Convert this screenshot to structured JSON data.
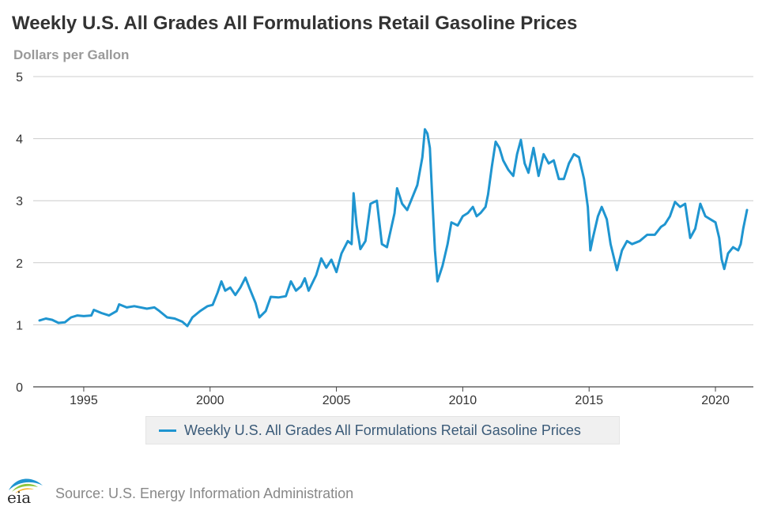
{
  "header": {
    "title": "Weekly U.S. All Grades All Formulations Retail Gasoline Prices",
    "subtitle": "Dollars per Gallon"
  },
  "legend": {
    "label": "Weekly U.S. All Grades All Formulations Retail Gasoline Prices",
    "color": "#1f95d0"
  },
  "footer": {
    "logo_text": "eia",
    "source": "Source: U.S. Energy Information Administration"
  },
  "chart_data": {
    "type": "line",
    "title": "Weekly U.S. All Grades All Formulations Retail Gasoline Prices",
    "ylabel": "Dollars per Gallon",
    "xlabel": "",
    "xlim": [
      1993.0,
      2021.5
    ],
    "ylim": [
      0,
      5
    ],
    "x_ticks": [
      1995,
      2000,
      2005,
      2010,
      2015,
      2020
    ],
    "y_ticks": [
      0,
      1,
      2,
      3,
      4,
      5
    ],
    "grid": "horizontal",
    "legend_position": "bottom-center",
    "series": [
      {
        "name": "Weekly U.S. All Grades All Formulations Retail Gasoline Prices",
        "color": "#1f95d0",
        "points": [
          [
            1993.25,
            1.07
          ],
          [
            1993.5,
            1.1
          ],
          [
            1993.75,
            1.08
          ],
          [
            1994.0,
            1.03
          ],
          [
            1994.25,
            1.04
          ],
          [
            1994.5,
            1.12
          ],
          [
            1994.75,
            1.15
          ],
          [
            1995.0,
            1.14
          ],
          [
            1995.3,
            1.15
          ],
          [
            1995.4,
            1.24
          ],
          [
            1995.7,
            1.19
          ],
          [
            1996.0,
            1.15
          ],
          [
            1996.3,
            1.22
          ],
          [
            1996.4,
            1.33
          ],
          [
            1996.7,
            1.28
          ],
          [
            1997.0,
            1.3
          ],
          [
            1997.5,
            1.26
          ],
          [
            1997.8,
            1.28
          ],
          [
            1998.0,
            1.22
          ],
          [
            1998.3,
            1.12
          ],
          [
            1998.6,
            1.1
          ],
          [
            1998.9,
            1.05
          ],
          [
            1999.1,
            0.98
          ],
          [
            1999.3,
            1.12
          ],
          [
            1999.6,
            1.22
          ],
          [
            1999.9,
            1.3
          ],
          [
            2000.1,
            1.32
          ],
          [
            2000.3,
            1.52
          ],
          [
            2000.45,
            1.7
          ],
          [
            2000.6,
            1.55
          ],
          [
            2000.8,
            1.6
          ],
          [
            2001.0,
            1.48
          ],
          [
            2001.2,
            1.6
          ],
          [
            2001.4,
            1.76
          ],
          [
            2001.55,
            1.6
          ],
          [
            2001.8,
            1.35
          ],
          [
            2001.95,
            1.12
          ],
          [
            2002.2,
            1.22
          ],
          [
            2002.4,
            1.45
          ],
          [
            2002.7,
            1.44
          ],
          [
            2003.0,
            1.46
          ],
          [
            2003.2,
            1.7
          ],
          [
            2003.4,
            1.55
          ],
          [
            2003.6,
            1.62
          ],
          [
            2003.75,
            1.75
          ],
          [
            2003.9,
            1.55
          ],
          [
            2004.2,
            1.8
          ],
          [
            2004.4,
            2.07
          ],
          [
            2004.6,
            1.92
          ],
          [
            2004.8,
            2.05
          ],
          [
            2005.0,
            1.85
          ],
          [
            2005.2,
            2.15
          ],
          [
            2005.45,
            2.35
          ],
          [
            2005.6,
            2.3
          ],
          [
            2005.68,
            3.12
          ],
          [
            2005.8,
            2.6
          ],
          [
            2005.95,
            2.22
          ],
          [
            2006.15,
            2.35
          ],
          [
            2006.35,
            2.95
          ],
          [
            2006.6,
            3.0
          ],
          [
            2006.8,
            2.3
          ],
          [
            2007.0,
            2.25
          ],
          [
            2007.3,
            2.8
          ],
          [
            2007.4,
            3.2
          ],
          [
            2007.6,
            2.95
          ],
          [
            2007.8,
            2.85
          ],
          [
            2008.0,
            3.05
          ],
          [
            2008.2,
            3.25
          ],
          [
            2008.4,
            3.7
          ],
          [
            2008.5,
            4.15
          ],
          [
            2008.6,
            4.08
          ],
          [
            2008.7,
            3.85
          ],
          [
            2008.8,
            3.0
          ],
          [
            2008.9,
            2.2
          ],
          [
            2009.0,
            1.7
          ],
          [
            2009.2,
            1.95
          ],
          [
            2009.4,
            2.3
          ],
          [
            2009.55,
            2.65
          ],
          [
            2009.8,
            2.6
          ],
          [
            2010.0,
            2.75
          ],
          [
            2010.2,
            2.8
          ],
          [
            2010.4,
            2.9
          ],
          [
            2010.55,
            2.75
          ],
          [
            2010.7,
            2.8
          ],
          [
            2010.9,
            2.9
          ],
          [
            2011.0,
            3.1
          ],
          [
            2011.15,
            3.55
          ],
          [
            2011.3,
            3.95
          ],
          [
            2011.45,
            3.85
          ],
          [
            2011.6,
            3.65
          ],
          [
            2011.8,
            3.5
          ],
          [
            2012.0,
            3.4
          ],
          [
            2012.15,
            3.75
          ],
          [
            2012.3,
            3.98
          ],
          [
            2012.45,
            3.6
          ],
          [
            2012.6,
            3.45
          ],
          [
            2012.8,
            3.85
          ],
          [
            2013.0,
            3.4
          ],
          [
            2013.2,
            3.75
          ],
          [
            2013.4,
            3.6
          ],
          [
            2013.6,
            3.65
          ],
          [
            2013.8,
            3.35
          ],
          [
            2014.0,
            3.35
          ],
          [
            2014.2,
            3.6
          ],
          [
            2014.4,
            3.75
          ],
          [
            2014.6,
            3.7
          ],
          [
            2014.8,
            3.35
          ],
          [
            2014.95,
            2.9
          ],
          [
            2015.05,
            2.2
          ],
          [
            2015.15,
            2.4
          ],
          [
            2015.35,
            2.75
          ],
          [
            2015.5,
            2.9
          ],
          [
            2015.7,
            2.7
          ],
          [
            2015.85,
            2.3
          ],
          [
            2016.1,
            1.88
          ],
          [
            2016.3,
            2.2
          ],
          [
            2016.5,
            2.35
          ],
          [
            2016.7,
            2.3
          ],
          [
            2017.0,
            2.35
          ],
          [
            2017.3,
            2.45
          ],
          [
            2017.6,
            2.45
          ],
          [
            2017.85,
            2.58
          ],
          [
            2018.0,
            2.62
          ],
          [
            2018.2,
            2.75
          ],
          [
            2018.4,
            2.98
          ],
          [
            2018.6,
            2.9
          ],
          [
            2018.8,
            2.95
          ],
          [
            2019.0,
            2.4
          ],
          [
            2019.2,
            2.55
          ],
          [
            2019.4,
            2.95
          ],
          [
            2019.6,
            2.75
          ],
          [
            2019.8,
            2.7
          ],
          [
            2020.0,
            2.65
          ],
          [
            2020.15,
            2.4
          ],
          [
            2020.25,
            2.05
          ],
          [
            2020.35,
            1.9
          ],
          [
            2020.5,
            2.15
          ],
          [
            2020.7,
            2.25
          ],
          [
            2020.9,
            2.2
          ],
          [
            2021.0,
            2.3
          ],
          [
            2021.1,
            2.55
          ],
          [
            2021.25,
            2.85
          ]
        ]
      }
    ]
  }
}
